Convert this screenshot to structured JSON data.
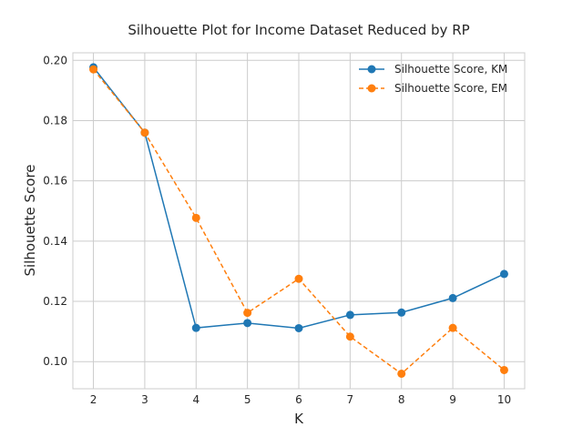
{
  "chart_data": {
    "type": "line",
    "title": "Silhouette Plot for Income Dataset Reduced by RP",
    "xlabel": "K",
    "ylabel": "Silhouette Score",
    "x": [
      2,
      3,
      4,
      5,
      6,
      7,
      8,
      9,
      10
    ],
    "xlim": [
      1.6,
      10.4
    ],
    "ylim": [
      0.091,
      0.2025
    ],
    "xticks": [
      "2",
      "3",
      "4",
      "5",
      "6",
      "7",
      "8",
      "9",
      "10"
    ],
    "yticks": [
      "0.10",
      "0.12",
      "0.14",
      "0.16",
      "0.18",
      "0.20"
    ],
    "ytick_values": [
      0.1,
      0.12,
      0.14,
      0.16,
      0.18,
      0.2
    ],
    "grid": true,
    "legend_position": "top-right",
    "series": [
      {
        "name": "Silhouette Score, KM",
        "color": "#1f77b4",
        "line_style": "solid",
        "marker": "circle",
        "values": [
          0.1977,
          0.176,
          0.1112,
          0.1128,
          0.1111,
          0.1155,
          0.1163,
          0.1211,
          0.1291
        ]
      },
      {
        "name": "Silhouette Score, EM",
        "color": "#ff7f0e",
        "line_style": "dashed",
        "marker": "circle",
        "values": [
          0.197,
          0.176,
          0.1477,
          0.1162,
          0.1275,
          0.1083,
          0.096,
          0.1112,
          0.0972
        ]
      }
    ]
  }
}
